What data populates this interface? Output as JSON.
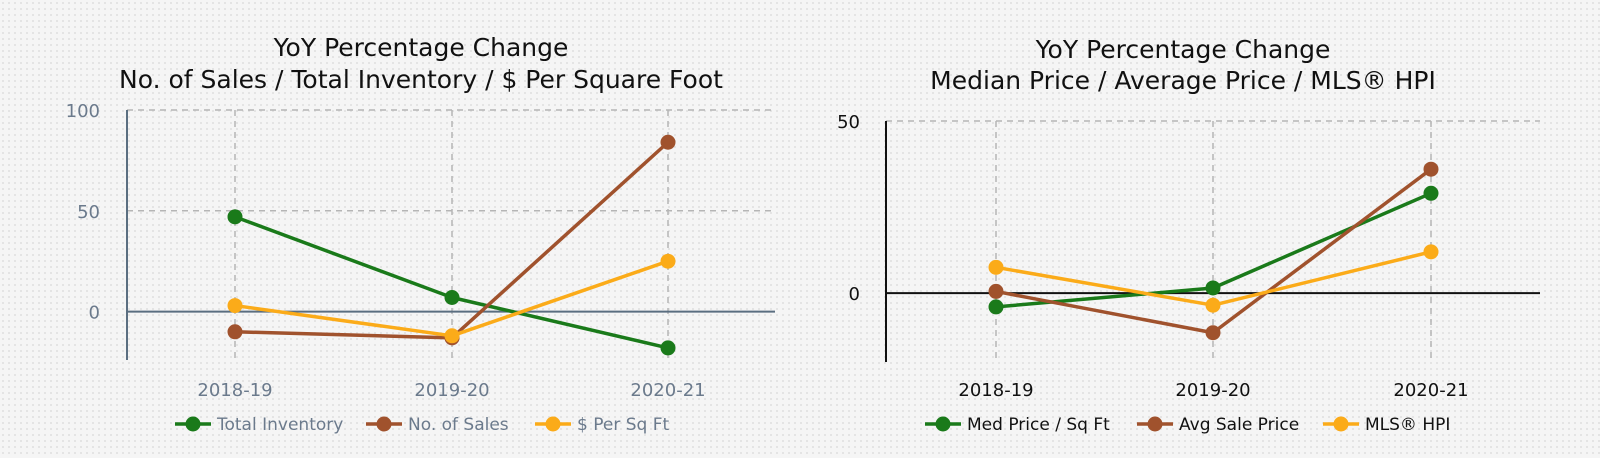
{
  "chart_data": [
    {
      "type": "line",
      "title_lines": [
        "YoY Percentage Change",
        "No. of Sales / Total Inventory /  $ Per Square Foot"
      ],
      "categories": [
        "2018-19",
        "2019-20",
        "2020-21"
      ],
      "yticks": [
        "100",
        "50",
        "0"
      ],
      "ylim": [
        -24,
        100
      ],
      "grid": true,
      "legend_position": "bottom",
      "series": [
        {
          "name": "Total Inventory",
          "color": "#1a7a1a",
          "values": [
            47,
            7,
            -18
          ]
        },
        {
          "name": "No. of Sales",
          "color": "#a0522d",
          "values": [
            -10,
            -13,
            84
          ]
        },
        {
          "name": "$ Per Sq Ft",
          "color": "#fbab19",
          "values": [
            3,
            -12,
            25
          ]
        }
      ]
    },
    {
      "type": "line",
      "title_lines": [
        "YoY Percentage Change",
        "Median Price / Average Price / MLS® HPI"
      ],
      "categories": [
        "2018-19",
        "2019-20",
        "2020-21"
      ],
      "yticks": [
        "50",
        "0"
      ],
      "ylim": [
        -20,
        50
      ],
      "grid": true,
      "legend_position": "bottom",
      "series": [
        {
          "name": "Med Price / Sq Ft",
          "color": "#1a7a1a",
          "values": [
            -4,
            1.5,
            29
          ]
        },
        {
          "name": "Avg Sale Price",
          "color": "#a0522d",
          "values": [
            0.5,
            -11.5,
            36
          ]
        },
        {
          "name": "MLS® HPI",
          "color": "#fbab19",
          "values": [
            7.5,
            -3.5,
            12
          ]
        }
      ]
    }
  ]
}
